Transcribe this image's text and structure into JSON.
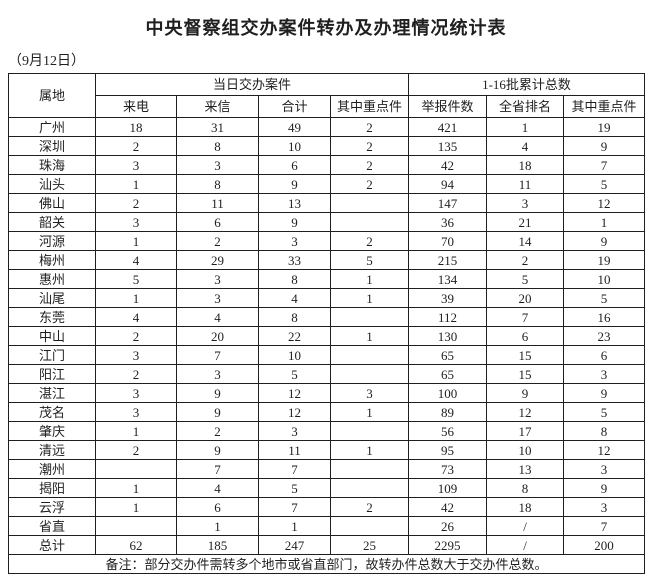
{
  "title": "中央督察组交办案件转办及办理情况统计表",
  "date_label": "（9月12日）",
  "colors": {
    "text": "#1f1f1f",
    "border": "#1f1f1f",
    "background": "#ffffff"
  },
  "table": {
    "corner_header": "属地",
    "group_headers": [
      "当日交办案件",
      "1-16批累计总数"
    ],
    "sub_headers": [
      "来电",
      "来信",
      "合计",
      "其中重点件",
      "举报件数",
      "全省排名",
      "其中重点件"
    ],
    "rows": [
      [
        "广州",
        "18",
        "31",
        "49",
        "2",
        "421",
        "1",
        "19"
      ],
      [
        "深圳",
        "2",
        "8",
        "10",
        "2",
        "135",
        "4",
        "9"
      ],
      [
        "珠海",
        "3",
        "3",
        "6",
        "2",
        "42",
        "18",
        "7"
      ],
      [
        "汕头",
        "1",
        "8",
        "9",
        "2",
        "94",
        "11",
        "5"
      ],
      [
        "佛山",
        "2",
        "11",
        "13",
        "",
        "147",
        "3",
        "12"
      ],
      [
        "韶关",
        "3",
        "6",
        "9",
        "",
        "36",
        "21",
        "1"
      ],
      [
        "河源",
        "1",
        "2",
        "3",
        "2",
        "70",
        "14",
        "9"
      ],
      [
        "梅州",
        "4",
        "29",
        "33",
        "5",
        "215",
        "2",
        "19"
      ],
      [
        "惠州",
        "5",
        "3",
        "8",
        "1",
        "134",
        "5",
        "10"
      ],
      [
        "汕尾",
        "1",
        "3",
        "4",
        "1",
        "39",
        "20",
        "5"
      ],
      [
        "东莞",
        "4",
        "4",
        "8",
        "",
        "112",
        "7",
        "16"
      ],
      [
        "中山",
        "2",
        "20",
        "22",
        "1",
        "130",
        "6",
        "23"
      ],
      [
        "江门",
        "3",
        "7",
        "10",
        "",
        "65",
        "15",
        "6"
      ],
      [
        "阳江",
        "2",
        "3",
        "5",
        "",
        "65",
        "15",
        "3"
      ],
      [
        "湛江",
        "3",
        "9",
        "12",
        "3",
        "100",
        "9",
        "9"
      ],
      [
        "茂名",
        "3",
        "9",
        "12",
        "1",
        "89",
        "12",
        "5"
      ],
      [
        "肇庆",
        "1",
        "2",
        "3",
        "",
        "56",
        "17",
        "8"
      ],
      [
        "清远",
        "2",
        "9",
        "11",
        "1",
        "95",
        "10",
        "12"
      ],
      [
        "潮州",
        "",
        "7",
        "7",
        "",
        "73",
        "13",
        "3"
      ],
      [
        "揭阳",
        "1",
        "4",
        "5",
        "",
        "109",
        "8",
        "9"
      ],
      [
        "云浮",
        "1",
        "6",
        "7",
        "2",
        "42",
        "18",
        "3"
      ],
      [
        "省直",
        "",
        "1",
        "1",
        "",
        "26",
        "/",
        "7"
      ],
      [
        "总计",
        "62",
        "185",
        "247",
        "25",
        "2295",
        "/",
        "200"
      ]
    ],
    "note": "备注：部分交办件需转多个地市或省直部门，故转办件总数大于交办件总数。"
  }
}
